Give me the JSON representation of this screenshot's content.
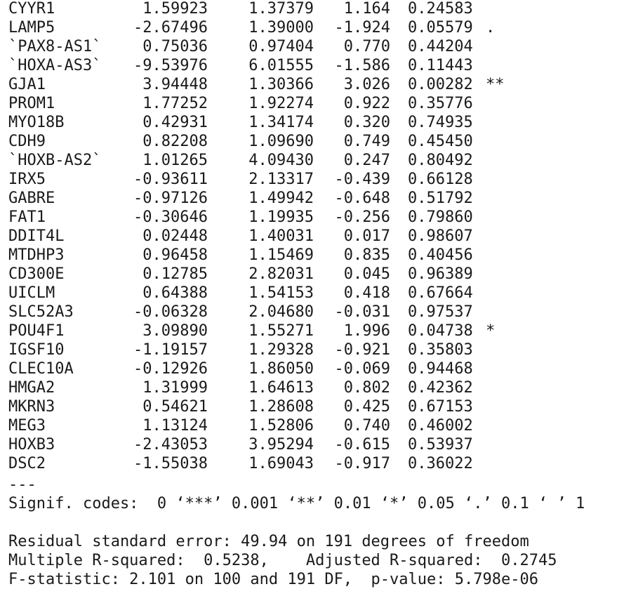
{
  "coefficients": [
    {
      "name": "CYYR1",
      "estimate": "1.59923",
      "std_error": "1.37379",
      "t_value": "1.164",
      "p_value": "0.24583",
      "signif": ""
    },
    {
      "name": "LAMP5",
      "estimate": "-2.67496",
      "std_error": "1.39000",
      "t_value": "-1.924",
      "p_value": "0.05579",
      "signif": "."
    },
    {
      "name": "`PAX8-AS1`",
      "estimate": "0.75036",
      "std_error": "0.97404",
      "t_value": "0.770",
      "p_value": "0.44204",
      "signif": ""
    },
    {
      "name": "`HOXA-AS3`",
      "estimate": "-9.53976",
      "std_error": "6.01555",
      "t_value": "-1.586",
      "p_value": "0.11443",
      "signif": ""
    },
    {
      "name": "GJA1",
      "estimate": "3.94448",
      "std_error": "1.30366",
      "t_value": "3.026",
      "p_value": "0.00282",
      "signif": "**"
    },
    {
      "name": "PROM1",
      "estimate": "1.77252",
      "std_error": "1.92274",
      "t_value": "0.922",
      "p_value": "0.35776",
      "signif": ""
    },
    {
      "name": "MYO18B",
      "estimate": "0.42931",
      "std_error": "1.34174",
      "t_value": "0.320",
      "p_value": "0.74935",
      "signif": ""
    },
    {
      "name": "CDH9",
      "estimate": "0.82208",
      "std_error": "1.09690",
      "t_value": "0.749",
      "p_value": "0.45450",
      "signif": ""
    },
    {
      "name": "`HOXB-AS2`",
      "estimate": "1.01265",
      "std_error": "4.09430",
      "t_value": "0.247",
      "p_value": "0.80492",
      "signif": ""
    },
    {
      "name": "IRX5",
      "estimate": "-0.93611",
      "std_error": "2.13317",
      "t_value": "-0.439",
      "p_value": "0.66128",
      "signif": ""
    },
    {
      "name": "GABRE",
      "estimate": "-0.97126",
      "std_error": "1.49942",
      "t_value": "-0.648",
      "p_value": "0.51792",
      "signif": ""
    },
    {
      "name": "FAT1",
      "estimate": "-0.30646",
      "std_error": "1.19935",
      "t_value": "-0.256",
      "p_value": "0.79860",
      "signif": ""
    },
    {
      "name": "DDIT4L",
      "estimate": "0.02448",
      "std_error": "1.40031",
      "t_value": "0.017",
      "p_value": "0.98607",
      "signif": ""
    },
    {
      "name": "MTDHP3",
      "estimate": "0.96458",
      "std_error": "1.15469",
      "t_value": "0.835",
      "p_value": "0.40456",
      "signif": ""
    },
    {
      "name": "CD300E",
      "estimate": "0.12785",
      "std_error": "2.82031",
      "t_value": "0.045",
      "p_value": "0.96389",
      "signif": ""
    },
    {
      "name": "UICLM",
      "estimate": "0.64388",
      "std_error": "1.54153",
      "t_value": "0.418",
      "p_value": "0.67664",
      "signif": ""
    },
    {
      "name": "SLC52A3",
      "estimate": "-0.06328",
      "std_error": "2.04680",
      "t_value": "-0.031",
      "p_value": "0.97537",
      "signif": ""
    },
    {
      "name": "POU4F1",
      "estimate": "3.09890",
      "std_error": "1.55271",
      "t_value": "1.996",
      "p_value": "0.04738",
      "signif": "*"
    },
    {
      "name": "IGSF10",
      "estimate": "-1.19157",
      "std_error": "1.29328",
      "t_value": "-0.921",
      "p_value": "0.35803",
      "signif": ""
    },
    {
      "name": "CLEC10A",
      "estimate": "-0.12926",
      "std_error": "1.86050",
      "t_value": "-0.069",
      "p_value": "0.94468",
      "signif": ""
    },
    {
      "name": "HMGA2",
      "estimate": "1.31999",
      "std_error": "1.64613",
      "t_value": "0.802",
      "p_value": "0.42362",
      "signif": ""
    },
    {
      "name": "MKRN3",
      "estimate": "0.54621",
      "std_error": "1.28608",
      "t_value": "0.425",
      "p_value": "0.67153",
      "signif": ""
    },
    {
      "name": "MEG3",
      "estimate": "1.13124",
      "std_error": "1.52806",
      "t_value": "0.740",
      "p_value": "0.46002",
      "signif": ""
    },
    {
      "name": "HOXB3",
      "estimate": "-2.43053",
      "std_error": "3.95294",
      "t_value": "-0.615",
      "p_value": "0.53937",
      "signif": ""
    },
    {
      "name": "DSC2",
      "estimate": "-1.55038",
      "std_error": "1.69043",
      "t_value": "-0.917",
      "p_value": "0.36022",
      "signif": ""
    }
  ],
  "separator": "---",
  "signif_codes": "Signif. codes:  0 ‘***’ 0.001 ‘**’ 0.01 ‘*’ 0.05 ‘.’ 0.1 ‘ ’ 1",
  "residual_line": "Residual standard error: 49.94 on 191 degrees of freedom",
  "rsquared_line": "Multiple R-squared:  0.5238,\tAdjusted R-squared:  0.2745 ",
  "fstat_line": "F-statistic: 2.101 on 100 and 191 DF,  p-value: 5.798e-06",
  "colors": {
    "background": "#ffffff",
    "text": "#1a1a1a"
  }
}
